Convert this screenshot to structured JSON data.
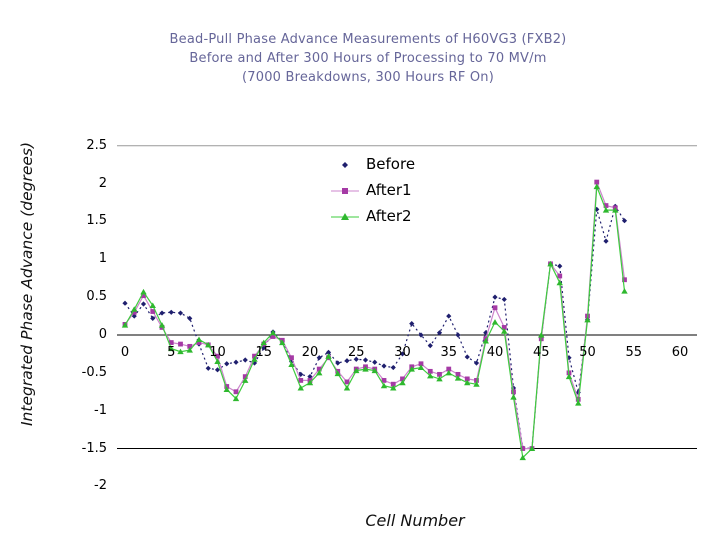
{
  "title": {
    "line1": "Bead-Pull Phase Advance Measurements of H60VG3 (FXB2)",
    "line2": "Before and After 300 Hours of Processing to 70 MV/m",
    "line3": "(7000 Breakdowns, 300 Hours RF On)",
    "color": "#666699"
  },
  "legend": {
    "items": [
      {
        "label": "Before"
      },
      {
        "label": "After1"
      },
      {
        "label": "After2"
      }
    ]
  },
  "chart_data": {
    "type": "line",
    "title": "Bead-Pull Phase Advance Measurements of H60VG3 (FXB2) Before and After 300 Hours of Processing to 70 MV/m (7000 Breakdowns, 300 Hours RF On)",
    "xlabel": "Cell Number",
    "ylabel": "Integrated Phase Advance (degrees)",
    "xlim": [
      0,
      60
    ],
    "ylim": [
      -2,
      2.5
    ],
    "legend_position": "top-center-inside",
    "grid": "horizontal-partial",
    "gridlines_y": [
      {
        "value": 2.5,
        "color": "#999999"
      },
      {
        "value": 0,
        "color": "#000000"
      },
      {
        "value": -1.5,
        "color": "#000000"
      }
    ],
    "y_ticks": [
      "2.5",
      "2",
      "1.5",
      "1",
      "0.5",
      "0",
      "-0.5",
      "-1",
      "-1.5",
      "-2"
    ],
    "y_tick_values": [
      2.5,
      2,
      1.5,
      1,
      0.5,
      0,
      -0.5,
      -1,
      -1.5,
      -2
    ],
    "x_ticks": [
      0,
      5,
      10,
      15,
      20,
      25,
      30,
      35,
      40,
      45,
      50,
      55,
      60
    ],
    "x": [
      0,
      1,
      2,
      3,
      4,
      5,
      6,
      7,
      8,
      9,
      10,
      11,
      12,
      13,
      14,
      15,
      16,
      17,
      18,
      19,
      20,
      21,
      22,
      23,
      24,
      25,
      26,
      27,
      28,
      29,
      30,
      31,
      32,
      33,
      34,
      35,
      36,
      37,
      38,
      39,
      40,
      41,
      42,
      43,
      44,
      45,
      46,
      47,
      48,
      49,
      50,
      51,
      52,
      53,
      54
    ],
    "series": [
      {
        "name": "Before",
        "line_color": "#1f1f6e",
        "marker_color": "#1f1f6e",
        "marker": "diamond",
        "dash": "2 3",
        "values": [
          0.42,
          0.25,
          0.41,
          0.22,
          0.29,
          0.3,
          0.29,
          0.22,
          -0.12,
          -0.44,
          -0.46,
          -0.38,
          -0.36,
          -0.33,
          -0.37,
          -0.17,
          0.04,
          -0.08,
          -0.35,
          -0.52,
          -0.55,
          -0.3,
          -0.23,
          -0.37,
          -0.34,
          -0.32,
          -0.33,
          -0.36,
          -0.41,
          -0.43,
          -0.25,
          0.15,
          0.0,
          -0.14,
          0.03,
          0.25,
          0.0,
          -0.29,
          -0.37,
          0.03,
          0.5,
          0.47,
          -0.7,
          -1.49,
          -1.5,
          -0.04,
          0.94,
          0.91,
          -0.3,
          -0.76,
          0.2,
          1.66,
          1.24,
          1.7,
          1.51
        ]
      },
      {
        "name": "After1",
        "line_color": "#cc85cc",
        "marker_color": "#a53aa5",
        "marker": "square",
        "dash": "",
        "values": [
          0.14,
          0.3,
          0.52,
          0.31,
          0.1,
          -0.1,
          -0.12,
          -0.15,
          -0.1,
          -0.13,
          -0.28,
          -0.68,
          -0.75,
          -0.55,
          -0.28,
          -0.12,
          -0.02,
          -0.07,
          -0.3,
          -0.6,
          -0.6,
          -0.45,
          -0.3,
          -0.48,
          -0.62,
          -0.45,
          -0.42,
          -0.45,
          -0.6,
          -0.65,
          -0.58,
          -0.42,
          -0.38,
          -0.48,
          -0.52,
          -0.45,
          -0.52,
          -0.58,
          -0.6,
          -0.05,
          0.36,
          0.1,
          -0.75,
          -1.5,
          -1.5,
          -0.05,
          0.94,
          0.78,
          -0.5,
          -0.85,
          0.25,
          2.02,
          1.71,
          1.68,
          0.73
        ]
      },
      {
        "name": "After2",
        "line_color": "#3ecc3e",
        "marker_color": "#2eb82e",
        "marker": "triangle",
        "dash": "",
        "values": [
          0.13,
          0.34,
          0.57,
          0.39,
          0.13,
          -0.18,
          -0.22,
          -0.2,
          -0.06,
          -0.13,
          -0.35,
          -0.72,
          -0.84,
          -0.6,
          -0.32,
          -0.1,
          0.03,
          -0.1,
          -0.39,
          -0.7,
          -0.63,
          -0.5,
          -0.28,
          -0.51,
          -0.7,
          -0.47,
          -0.45,
          -0.47,
          -0.67,
          -0.7,
          -0.63,
          -0.45,
          -0.43,
          -0.54,
          -0.58,
          -0.5,
          -0.57,
          -0.63,
          -0.65,
          -0.08,
          0.17,
          0.05,
          -0.82,
          -1.62,
          -1.5,
          0.0,
          0.94,
          0.69,
          -0.55,
          -0.9,
          0.2,
          1.96,
          1.65,
          1.65,
          0.58
        ]
      }
    ]
  }
}
